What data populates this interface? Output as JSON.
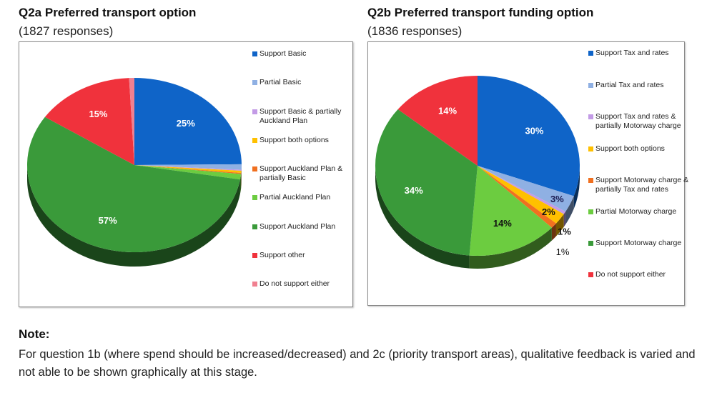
{
  "chart_data": [
    {
      "type": "pie",
      "title": "Q2a Preferred transport option",
      "subtitle": "(1827 responses)",
      "categories": [
        "Support Basic",
        "Partial Basic",
        "Support Basic & partially Auckland Plan",
        "Support both options",
        "Support Auckland Plan & partially Basic",
        "Partial Auckland Plan",
        "Support Auckland Plan",
        "Support other",
        "Do not support either"
      ],
      "values": [
        25,
        1,
        0.2,
        0.4,
        0.2,
        1,
        57,
        15,
        0.8
      ],
      "labels": [
        "25%",
        "",
        "",
        "",
        "",
        "",
        "57%",
        "15%",
        ""
      ],
      "colors": [
        "#0f64c8",
        "#8fb0e3",
        "#c39be6",
        "#ffc000",
        "#f07020",
        "#6ccc40",
        "#3a9a3a",
        "#f0323c",
        "#f08090"
      ],
      "legend_position": "right"
    },
    {
      "type": "pie",
      "title": "Q2b Preferred transport funding option",
      "subtitle": "(1836 responses)",
      "categories": [
        "Support Tax and rates",
        "Partial Tax and rates",
        "Support Tax and rates & partially Motorway charge",
        "Support both options",
        "Support Motorway charge & partially Tax and rates",
        "Partial Motorway charge",
        "Support Motorway charge",
        "Do not support either"
      ],
      "values": [
        30,
        3,
        0.5,
        2,
        1,
        14,
        34,
        14
      ],
      "labels": [
        "30%",
        "3%",
        "",
        "2%",
        "1%",
        "14%",
        "34%",
        "14%"
      ],
      "extra_labels": [
        "1%"
      ],
      "colors": [
        "#0f64c8",
        "#8fb0e3",
        "#c39be6",
        "#ffc000",
        "#f07020",
        "#6ccc40",
        "#3a9a3a",
        "#f0323c"
      ],
      "legend_position": "right"
    }
  ],
  "note": {
    "title": "Note:",
    "text": "For question 1b (where spend should be increased/decreased) and 2c (priority transport areas), qualitative feedback is varied and not able to be shown graphically at this stage."
  }
}
